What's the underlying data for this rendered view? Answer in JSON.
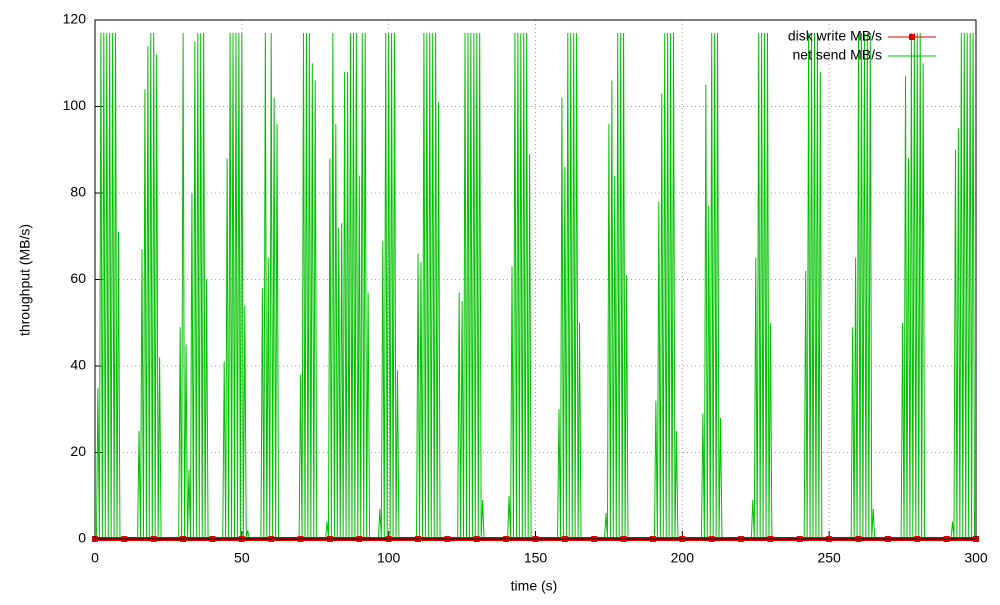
{
  "chart_data": {
    "type": "line",
    "xlabel": "time (s)",
    "ylabel": "throughput (MB/s)",
    "xlim": [
      0,
      300
    ],
    "xticks": [
      0,
      50,
      100,
      150,
      200,
      250,
      300
    ],
    "ylim": [
      0,
      120
    ],
    "yticks": [
      0,
      20,
      40,
      60,
      80,
      100,
      120
    ],
    "grid": true,
    "legend": "top-right",
    "series": [
      {
        "name": "disk write MB/s",
        "color": "#e00000",
        "marker": "square",
        "x": [
          0,
          10,
          20,
          30,
          40,
          50,
          60,
          70,
          80,
          90,
          100,
          110,
          120,
          130,
          140,
          150,
          160,
          170,
          180,
          190,
          200,
          210,
          220,
          230,
          240,
          250,
          260,
          270,
          280,
          290,
          300
        ],
        "values": [
          0,
          0,
          0,
          0,
          0,
          0,
          0,
          0,
          0,
          0,
          0,
          0,
          0,
          0,
          0,
          0,
          0,
          0,
          0,
          0,
          0,
          0,
          0,
          0,
          0,
          0,
          0,
          0,
          0,
          0,
          0
        ]
      },
      {
        "name": "net send MB/s",
        "color": "#00c000",
        "x": [
          0,
          0.5,
          1,
          1.5,
          2,
          2.5,
          3,
          3.5,
          4,
          4.5,
          5,
          5.5,
          6,
          6.5,
          7,
          7.5,
          8,
          8.5,
          14.5,
          15,
          15.5,
          16,
          16.5,
          17,
          17.5,
          18,
          18.5,
          19,
          19.5,
          20,
          20.5,
          21,
          21.5,
          22,
          22.5,
          28.5,
          29,
          29.5,
          30,
          30.5,
          31,
          31.5,
          32,
          32.5,
          33,
          33.5,
          34,
          34.5,
          35,
          35.5,
          36,
          36.5,
          37,
          37.5,
          38,
          38.5,
          43.5,
          44,
          44.5,
          45,
          45.5,
          46,
          46.5,
          47,
          47.5,
          48,
          48.5,
          49,
          49.5,
          50,
          50.5,
          51,
          51.5,
          52,
          52.5,
          56.5,
          57,
          57.5,
          58,
          58.5,
          59,
          59.5,
          60,
          60.5,
          61,
          61.5,
          62,
          62.5,
          69.5,
          70,
          70.5,
          71,
          71.5,
          72,
          72.5,
          73,
          73.5,
          74,
          74.5,
          75,
          75.5,
          78.5,
          79,
          79.5,
          80,
          80.5,
          81,
          81.5,
          82,
          82.5,
          83,
          83.5,
          84,
          84.5,
          85,
          85.5,
          86,
          86.5,
          87,
          87.5,
          88,
          88.5,
          89,
          89.5,
          90,
          90.5,
          91,
          91.5,
          92,
          92.5,
          93,
          93.5,
          96.5,
          97,
          97.5,
          98,
          98.5,
          99,
          99.5,
          100,
          100.5,
          101,
          101.5,
          102,
          102.5,
          103,
          103.5,
          109.5,
          110,
          110.5,
          111,
          111.5,
          112,
          112.5,
          113,
          113.5,
          114,
          114.5,
          115,
          115.5,
          116,
          116.5,
          117,
          117.5,
          123.5,
          124,
          124.5,
          125,
          125.5,
          126,
          126.5,
          127,
          127.5,
          128,
          128.5,
          129,
          129.5,
          130,
          130.5,
          131,
          131.5,
          132,
          132.5,
          140.5,
          141,
          141.5,
          142,
          142.5,
          143,
          143.5,
          144,
          144.5,
          145,
          145.5,
          146,
          146.5,
          147,
          147.5,
          148,
          148.5,
          157.5,
          158,
          158.5,
          159,
          159.5,
          160,
          160.5,
          161,
          161.5,
          162,
          162.5,
          163,
          163.5,
          164,
          164.5,
          165,
          165.5,
          173.5,
          174,
          174.5,
          175,
          175.5,
          176,
          176.5,
          177,
          177.5,
          178,
          178.5,
          179,
          179.5,
          180,
          180.5,
          181,
          181.5,
          190.5,
          191,
          191.5,
          192,
          192.5,
          193,
          193.5,
          194,
          194.5,
          195,
          195.5,
          196,
          196.5,
          197,
          197.5,
          198,
          198.5,
          206.5,
          207,
          207.5,
          208,
          208.5,
          209,
          209.5,
          210,
          210.5,
          211,
          211.5,
          212,
          212.5,
          213,
          213.5,
          223.5,
          224,
          224.5,
          225,
          225.5,
          226,
          226.5,
          227,
          227.5,
          228,
          228.5,
          229,
          229.5,
          230,
          230.5,
          241.5,
          242,
          242.5,
          243,
          243.5,
          244,
          244.5,
          245,
          245.5,
          246,
          246.5,
          247,
          247.5,
          257.5,
          258,
          258.5,
          259,
          259.5,
          260,
          260.5,
          261,
          261.5,
          262,
          262.5,
          263,
          263.5,
          264,
          264.5,
          265,
          265.5,
          274.5,
          275,
          275.5,
          276,
          276.5,
          277,
          277.5,
          278,
          278.5,
          279,
          279.5,
          280,
          280.5,
          281,
          281.5,
          282,
          282.5,
          291.5,
          292,
          292.5,
          293,
          293.5,
          294,
          294.5,
          295,
          295.5,
          296,
          296.5,
          297,
          297.5,
          298,
          298.5,
          299,
          299.5,
          300
        ],
        "values": [
          0,
          0,
          35,
          0,
          117,
          0,
          117,
          0,
          117,
          0,
          117,
          0,
          117,
          0,
          117,
          0,
          71,
          0,
          0,
          25,
          0,
          67,
          0,
          104,
          0,
          114,
          0,
          117,
          0,
          117,
          0,
          112,
          0,
          42,
          0,
          0,
          49,
          0,
          117,
          0,
          45,
          0,
          16,
          0,
          80,
          0,
          115,
          0,
          117,
          0,
          117,
          0,
          117,
          0,
          60,
          0,
          0,
          41,
          0,
          88,
          0,
          117,
          0,
          117,
          0,
          117,
          0,
          117,
          0,
          117,
          0,
          54,
          0,
          2,
          0,
          0,
          58,
          0,
          117,
          0,
          65,
          0,
          117,
          0,
          102,
          0,
          96,
          0,
          0,
          38,
          0,
          117,
          0,
          117,
          0,
          117,
          0,
          110,
          0,
          106,
          0,
          0,
          4,
          0,
          88,
          0,
          117,
          0,
          96,
          0,
          72,
          0,
          73,
          0,
          108,
          0,
          108,
          0,
          117,
          0,
          117,
          0,
          117,
          0,
          84,
          0,
          117,
          0,
          117,
          0,
          57,
          0,
          0,
          7,
          0,
          69,
          0,
          117,
          0,
          117,
          0,
          117,
          0,
          117,
          0,
          39,
          0,
          0,
          66,
          0,
          64,
          0,
          117,
          0,
          117,
          0,
          117,
          0,
          117,
          0,
          117,
          0,
          101,
          0,
          0,
          57,
          0,
          55,
          0,
          117,
          0,
          117,
          0,
          117,
          0,
          117,
          0,
          117,
          0,
          117,
          0,
          9,
          0,
          0,
          10,
          0,
          63,
          0,
          117,
          0,
          117,
          0,
          117,
          0,
          117,
          0,
          117,
          0,
          89,
          0,
          0,
          30,
          0,
          102,
          0,
          86,
          0,
          117,
          0,
          117,
          0,
          117,
          0,
          117,
          0,
          50,
          0,
          0,
          6,
          0,
          96,
          0,
          106,
          0,
          84,
          0,
          117,
          0,
          117,
          0,
          117,
          0,
          61,
          0,
          0,
          32,
          0,
          78,
          0,
          103,
          0,
          117,
          0,
          117,
          0,
          117,
          0,
          117,
          0,
          25,
          0,
          0,
          29,
          0,
          105,
          0,
          77,
          0,
          117,
          0,
          117,
          0,
          117,
          0,
          28,
          0,
          0,
          9,
          0,
          65,
          0,
          117,
          0,
          117,
          0,
          117,
          0,
          117,
          0,
          50,
          0,
          0,
          62,
          0,
          117,
          0,
          117,
          0,
          117,
          0,
          117,
          0,
          108,
          0,
          0,
          49,
          0,
          65,
          0,
          117,
          0,
          117,
          0,
          117,
          0,
          117,
          0,
          117,
          0,
          7,
          0,
          0,
          50,
          0,
          107,
          0,
          88,
          0,
          117,
          0,
          117,
          0,
          117,
          0,
          117,
          0,
          110,
          0,
          0,
          4,
          0,
          90,
          0,
          95,
          0,
          117,
          0,
          117,
          0,
          117,
          0,
          117,
          0,
          117,
          0,
          0
        ]
      }
    ]
  }
}
